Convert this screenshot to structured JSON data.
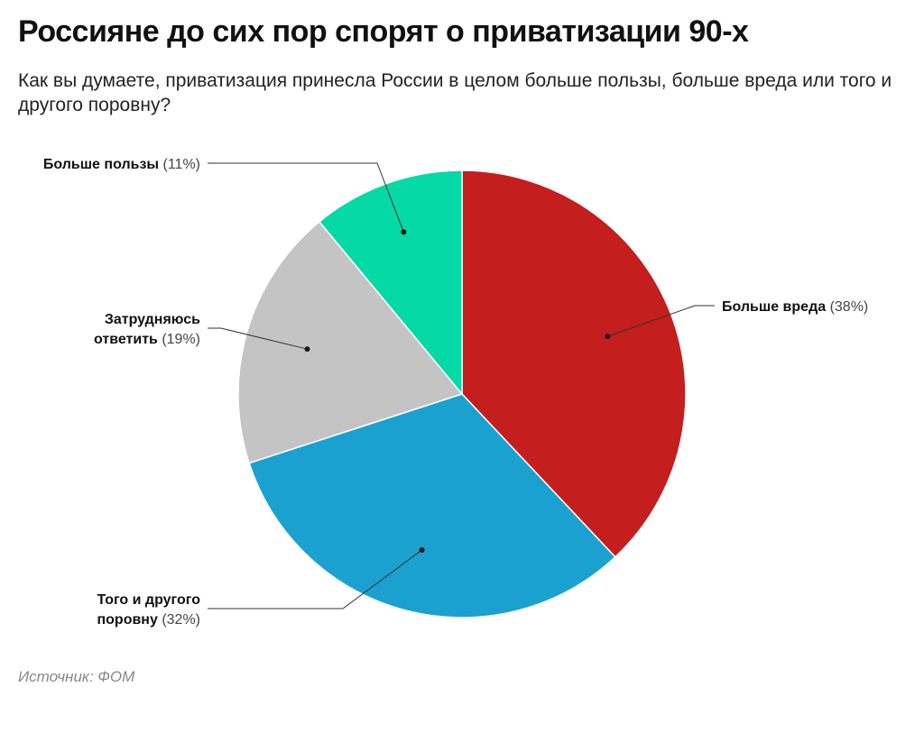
{
  "title": "Россияне до сих пор спорят о приватизации 90-х",
  "subtitle": "Как вы думаете, приватизация принесла России в целом больше пользы, больше вреда или того и другого поровну?",
  "source": "Источник: ФОМ",
  "chart_data": {
    "type": "pie",
    "slices": [
      {
        "name": "Больше вреда",
        "label_lines": [
          "Больше вреда"
        ],
        "pct_label": "(38%)",
        "value": 38,
        "color": "#c41e1e"
      },
      {
        "name": "Того и другого поровну",
        "label_lines": [
          "Того и другого",
          "поровну"
        ],
        "pct_label": "(32%)",
        "value": 32,
        "color": "#1ba1cf"
      },
      {
        "name": "Затрудняюсь ответить",
        "label_lines": [
          "Затрудняюсь",
          "ответить"
        ],
        "pct_label": "(19%)",
        "value": 19,
        "color": "#c4c4c4"
      },
      {
        "name": "Больше пользы",
        "label_lines": [
          "Больше пользы"
        ],
        "pct_label": "(11%)",
        "value": 11,
        "color": "#05d9a5"
      }
    ]
  }
}
